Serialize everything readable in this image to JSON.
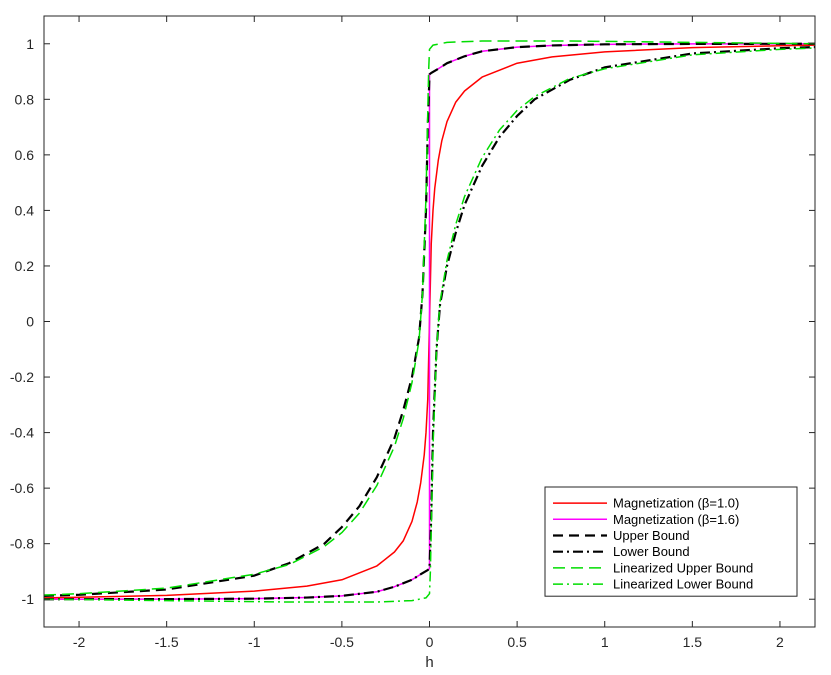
{
  "chart_data": {
    "type": "line",
    "title": "",
    "xlabel": "h",
    "ylabel": "",
    "xlim": [
      -2.2,
      2.2
    ],
    "ylim": [
      -1.1,
      1.1
    ],
    "grid": false,
    "legend_position": "bottom-right",
    "xticks": [
      -2,
      -1.5,
      -1,
      -0.5,
      0,
      0.5,
      1,
      1.5,
      2
    ],
    "xtick_labels": [
      "-2",
      "-1.5",
      "-1",
      "-0.5",
      "0",
      "0.5",
      "1",
      "1.5",
      "2"
    ],
    "yticks": [
      -1,
      -0.8,
      -0.6,
      -0.4,
      -0.2,
      0,
      0.2,
      0.4,
      0.6,
      0.8,
      1
    ],
    "ytick_labels": [
      "-1",
      "-0.8",
      "-0.6",
      "-0.4",
      "-0.2",
      "0",
      "0.2",
      "0.4",
      "0.6",
      "0.8",
      "1"
    ],
    "series": [
      {
        "name": "Magnetization (β=1.0)",
        "color": "#ff0000",
        "dash": "solid",
        "width": 1.5,
        "points": [
          [
            -2.2,
            -0.995
          ],
          [
            -2.0,
            -0.993
          ],
          [
            -1.5,
            -0.986
          ],
          [
            -1.0,
            -0.971
          ],
          [
            -0.7,
            -0.953
          ],
          [
            -0.5,
            -0.93
          ],
          [
            -0.3,
            -0.88
          ],
          [
            -0.2,
            -0.83
          ],
          [
            -0.15,
            -0.79
          ],
          [
            -0.1,
            -0.72
          ],
          [
            -0.07,
            -0.65
          ],
          [
            -0.05,
            -0.58
          ],
          [
            -0.03,
            -0.48
          ],
          [
            -0.02,
            -0.4
          ],
          [
            -0.01,
            -0.28
          ],
          [
            0.0,
            0.0
          ],
          [
            0.01,
            0.28
          ],
          [
            0.02,
            0.4
          ],
          [
            0.03,
            0.48
          ],
          [
            0.05,
            0.58
          ],
          [
            0.07,
            0.65
          ],
          [
            0.1,
            0.72
          ],
          [
            0.15,
            0.79
          ],
          [
            0.2,
            0.83
          ],
          [
            0.3,
            0.88
          ],
          [
            0.5,
            0.93
          ],
          [
            0.7,
            0.953
          ],
          [
            1.0,
            0.971
          ],
          [
            1.5,
            0.986
          ],
          [
            2.0,
            0.993
          ],
          [
            2.2,
            0.995
          ]
        ]
      },
      {
        "name": "Magnetization (β=1.6)",
        "color": "#ff00ff",
        "dash": "solid",
        "width": 1.5,
        "points": [
          [
            -2.2,
            -1.0
          ],
          [
            -1.5,
            -0.9995
          ],
          [
            -1.0,
            -0.998
          ],
          [
            -0.7,
            -0.994
          ],
          [
            -0.5,
            -0.988
          ],
          [
            -0.3,
            -0.973
          ],
          [
            -0.2,
            -0.955
          ],
          [
            -0.1,
            -0.93
          ],
          [
            -0.05,
            -0.91
          ],
          [
            -0.01,
            -0.895
          ],
          [
            0.0,
            -0.89
          ],
          [
            0.0,
            0.89
          ],
          [
            0.01,
            0.895
          ],
          [
            0.05,
            0.91
          ],
          [
            0.1,
            0.93
          ],
          [
            0.2,
            0.955
          ],
          [
            0.3,
            0.973
          ],
          [
            0.5,
            0.988
          ],
          [
            0.7,
            0.994
          ],
          [
            1.0,
            0.998
          ],
          [
            1.5,
            0.9995
          ],
          [
            2.2,
            1.0
          ]
        ]
      },
      {
        "name": "Upper Bound",
        "color": "#000000",
        "dash": "10,6",
        "width": 2.2,
        "points": [
          [
            -2.2,
            -0.988
          ],
          [
            -2.0,
            -0.984
          ],
          [
            -1.5,
            -0.965
          ],
          [
            -1.0,
            -0.915
          ],
          [
            -0.8,
            -0.87
          ],
          [
            -0.6,
            -0.8
          ],
          [
            -0.5,
            -0.74
          ],
          [
            -0.4,
            -0.665
          ],
          [
            -0.3,
            -0.56
          ],
          [
            -0.2,
            -0.42
          ],
          [
            -0.15,
            -0.32
          ],
          [
            -0.1,
            -0.2
          ],
          [
            -0.06,
            -0.06
          ],
          [
            -0.04,
            0.1
          ],
          [
            -0.02,
            0.4
          ],
          [
            -0.01,
            0.7
          ],
          [
            0.0,
            0.89
          ],
          [
            0.01,
            0.895
          ],
          [
            0.05,
            0.91
          ],
          [
            0.1,
            0.93
          ],
          [
            0.2,
            0.955
          ],
          [
            0.3,
            0.973
          ],
          [
            0.5,
            0.988
          ],
          [
            0.7,
            0.994
          ],
          [
            1.0,
            0.998
          ],
          [
            1.5,
            0.9995
          ],
          [
            2.2,
            1.0
          ]
        ]
      },
      {
        "name": "Lower Bound",
        "color": "#000000",
        "dash": "10,4,2,4",
        "width": 2.2,
        "points": [
          [
            -2.2,
            -1.0
          ],
          [
            -1.5,
            -0.9995
          ],
          [
            -1.0,
            -0.998
          ],
          [
            -0.7,
            -0.994
          ],
          [
            -0.5,
            -0.988
          ],
          [
            -0.3,
            -0.973
          ],
          [
            -0.2,
            -0.955
          ],
          [
            -0.1,
            -0.93
          ],
          [
            -0.05,
            -0.91
          ],
          [
            -0.01,
            -0.895
          ],
          [
            0.0,
            -0.89
          ],
          [
            0.01,
            -0.7
          ],
          [
            0.02,
            -0.4
          ],
          [
            0.04,
            -0.1
          ],
          [
            0.06,
            0.06
          ],
          [
            0.1,
            0.2
          ],
          [
            0.15,
            0.32
          ],
          [
            0.2,
            0.42
          ],
          [
            0.3,
            0.56
          ],
          [
            0.4,
            0.665
          ],
          [
            0.5,
            0.74
          ],
          [
            0.6,
            0.8
          ],
          [
            0.8,
            0.87
          ],
          [
            1.0,
            0.915
          ],
          [
            1.5,
            0.965
          ],
          [
            2.0,
            0.984
          ],
          [
            2.2,
            0.988
          ]
        ]
      },
      {
        "name": "Linearized Upper Bound",
        "color": "#00dd00",
        "dash": "12,6",
        "width": 1.5,
        "points": [
          [
            -2.2,
            -0.985
          ],
          [
            -2.0,
            -0.98
          ],
          [
            -1.5,
            -0.96
          ],
          [
            -1.0,
            -0.91
          ],
          [
            -0.8,
            -0.875
          ],
          [
            -0.6,
            -0.81
          ],
          [
            -0.5,
            -0.76
          ],
          [
            -0.4,
            -0.69
          ],
          [
            -0.3,
            -0.59
          ],
          [
            -0.2,
            -0.45
          ],
          [
            -0.15,
            -0.35
          ],
          [
            -0.1,
            -0.22
          ],
          [
            -0.06,
            -0.07
          ],
          [
            -0.04,
            0.1
          ],
          [
            -0.02,
            0.45
          ],
          [
            -0.005,
            0.9
          ],
          [
            0.0,
            0.98
          ],
          [
            0.02,
            0.995
          ],
          [
            0.1,
            1.005
          ],
          [
            0.3,
            1.01
          ],
          [
            0.8,
            1.01
          ],
          [
            1.5,
            1.005
          ],
          [
            2.2,
            1.0
          ]
        ]
      },
      {
        "name": "Linearized Lower Bound",
        "color": "#00dd00",
        "dash": "10,4,2,4",
        "width": 1.5,
        "points": [
          [
            -2.2,
            -1.0
          ],
          [
            -1.5,
            -1.005
          ],
          [
            -0.8,
            -1.01
          ],
          [
            -0.3,
            -1.01
          ],
          [
            -0.1,
            -1.005
          ],
          [
            -0.02,
            -0.995
          ],
          [
            0.0,
            -0.98
          ],
          [
            0.005,
            -0.9
          ],
          [
            0.02,
            -0.45
          ],
          [
            0.04,
            -0.1
          ],
          [
            0.06,
            0.07
          ],
          [
            0.1,
            0.22
          ],
          [
            0.15,
            0.35
          ],
          [
            0.2,
            0.45
          ],
          [
            0.3,
            0.59
          ],
          [
            0.4,
            0.69
          ],
          [
            0.5,
            0.76
          ],
          [
            0.6,
            0.81
          ],
          [
            0.8,
            0.875
          ],
          [
            1.0,
            0.91
          ],
          [
            1.5,
            0.96
          ],
          [
            2.0,
            0.98
          ],
          [
            2.2,
            0.985
          ]
        ]
      }
    ]
  }
}
